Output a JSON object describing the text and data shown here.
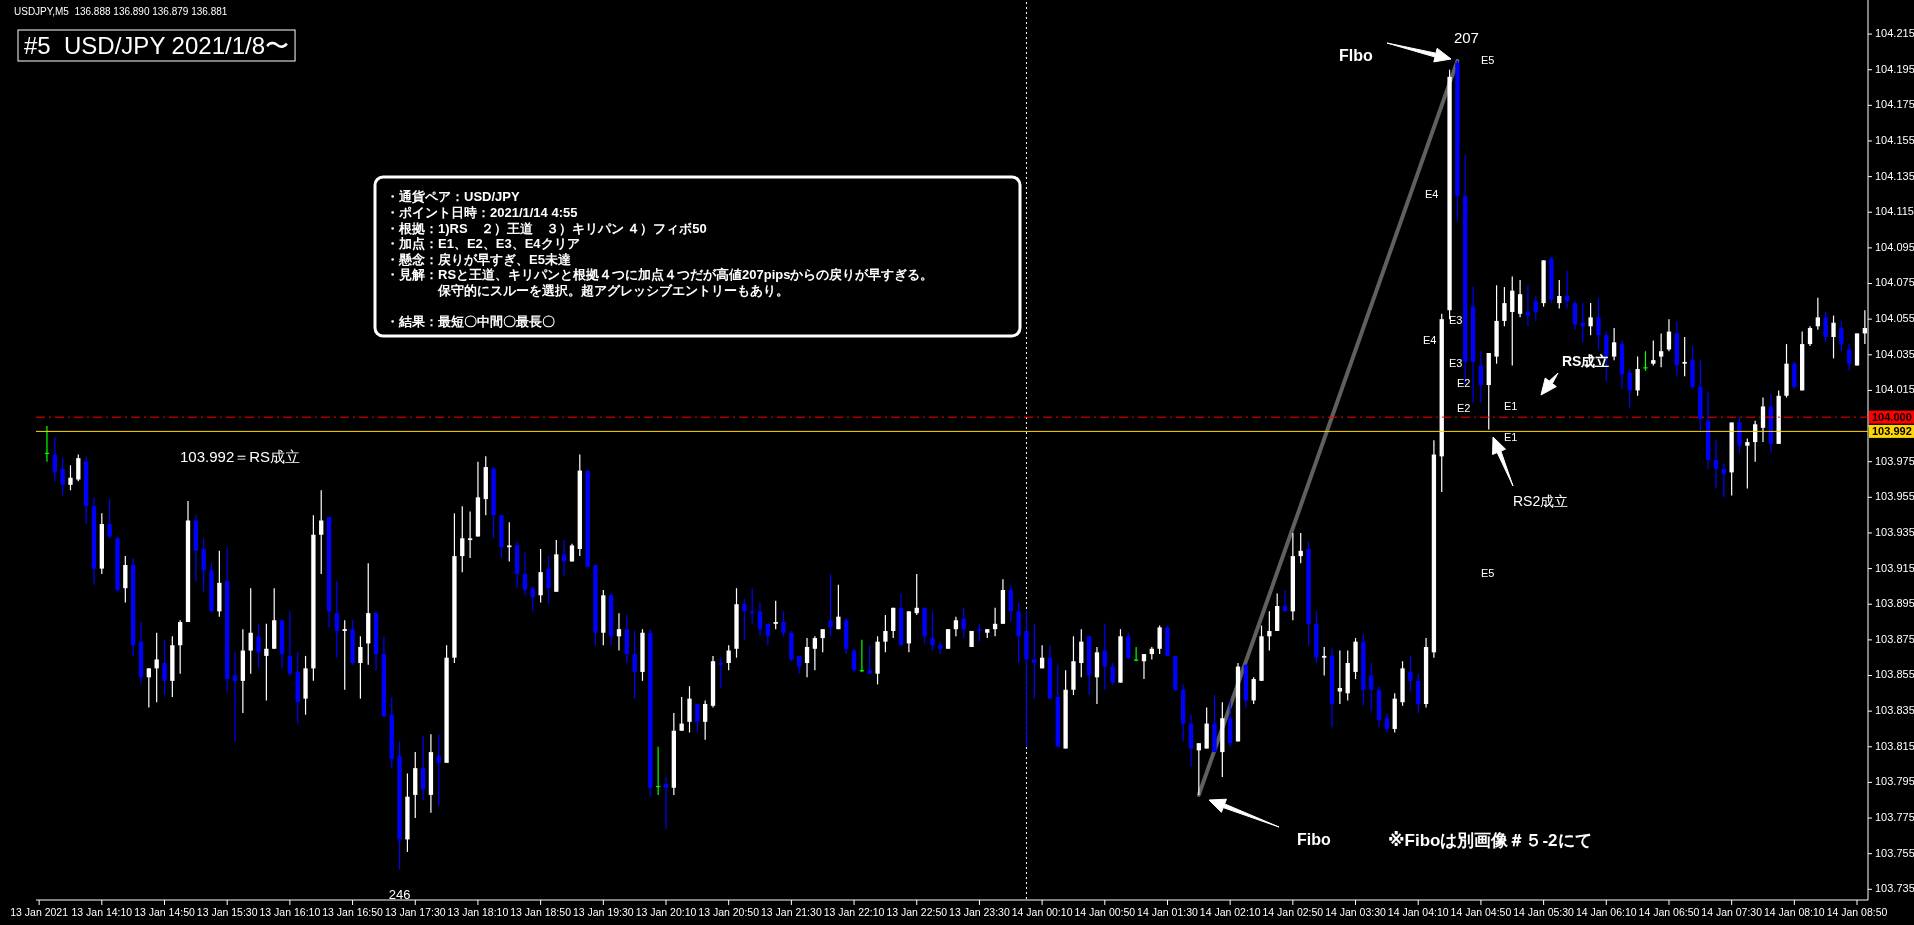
{
  "chart_data": {
    "type": "candlestick",
    "title": "#5  USD/JPY 2021/1/8〜",
    "xlim": [
      "2021-01-13T13:28",
      "2021-01-14T08:57"
    ],
    "ylim": [
      103.729,
      104.233
    ],
    "yticks": [
      103.735,
      103.755,
      103.775,
      103.795,
      103.815,
      103.835,
      103.855,
      103.875,
      103.895,
      103.915,
      103.935,
      103.955,
      103.975,
      {
        "value": 103.995,
        "label": null
      },
      104.015,
      104.035,
      104.055,
      104.075,
      104.095,
      104.115,
      104.135,
      104.155,
      104.175,
      104.195,
      104.215
    ],
    "xticks": [
      {
        "value": "2021-01-13T13:30",
        "label": "13 Jan 2021"
      },
      {
        "value": "2021-01-13T14:10",
        "label": "13 Jan 14:10"
      },
      {
        "value": "2021-01-13T14:50",
        "label": "13 Jan 14:50"
      },
      {
        "value": "2021-01-13T15:30",
        "label": "13 Jan 15:30"
      },
      {
        "value": "2021-01-13T16:10",
        "label": "13 Jan 16:10"
      },
      {
        "value": "2021-01-13T16:50",
        "label": "13 Jan 16:50"
      },
      {
        "value": "2021-01-13T17:30",
        "label": "13 Jan 17:30"
      },
      {
        "value": "2021-01-13T18:10",
        "label": "13 Jan 18:10"
      },
      {
        "value": "2021-01-13T18:50",
        "label": "13 Jan 18:50"
      },
      {
        "value": "2021-01-13T19:30",
        "label": "13 Jan 19:30"
      },
      {
        "value": "2021-01-13T20:10",
        "label": "13 Jan 20:10"
      },
      {
        "value": "2021-01-13T20:50",
        "label": "13 Jan 20:50"
      },
      {
        "value": "2021-01-13T21:30",
        "label": "13 Jan 21:30"
      },
      {
        "value": "2021-01-13T22:10",
        "label": "13 Jan 22:10"
      },
      {
        "value": "2021-01-13T22:50",
        "label": "13 Jan 22:50"
      },
      {
        "value": "2021-01-13T23:30",
        "label": "13 Jan 23:30"
      },
      {
        "value": "2021-01-14T00:10",
        "label": "14 Jan 00:10"
      },
      {
        "value": "2021-01-14T00:50",
        "label": "14 Jan 00:50"
      },
      {
        "value": "2021-01-14T01:30",
        "label": "14 Jan 01:30"
      },
      {
        "value": "2021-01-14T02:10",
        "label": "14 Jan 02:10"
      },
      {
        "value": "2021-01-14T02:50",
        "label": "14 Jan 02:50"
      },
      {
        "value": "2021-01-14T03:30",
        "label": "14 Jan 03:30"
      },
      {
        "value": "2021-01-14T04:10",
        "label": "14 Jan 04:10"
      },
      {
        "value": "2021-01-14T04:50",
        "label": "14 Jan 04:50"
      },
      {
        "value": "2021-01-14T05:30",
        "label": "14 Jan 05:30"
      },
      {
        "value": "2021-01-14T06:10",
        "label": "14 Jan 06:10"
      },
      {
        "value": "2021-01-14T06:50",
        "label": "14 Jan 06:50"
      },
      {
        "value": "2021-01-14T07:30",
        "label": "14 Jan 07:30"
      },
      {
        "value": "2021-01-14T08:10",
        "label": "14 Jan 08:10"
      },
      {
        "value": "2021-01-14T08:50",
        "label": "14 Jan 08:50"
      }
    ],
    "x": [
      "2021-01-13T13:35",
      "2021-01-13T13:40",
      "2021-01-13T13:45",
      "2021-01-13T13:50",
      "2021-01-13T13:55",
      "2021-01-13T14:00",
      "2021-01-13T14:05",
      "2021-01-13T14:10",
      "2021-01-13T14:15",
      "2021-01-13T14:20",
      "2021-01-13T14:25",
      "2021-01-13T14:30",
      "2021-01-13T14:35",
      "2021-01-13T14:40",
      "2021-01-13T14:45",
      "2021-01-13T14:50",
      "2021-01-13T14:55",
      "2021-01-13T15:00",
      "2021-01-13T15:05",
      "2021-01-13T15:10",
      "2021-01-13T15:15",
      "2021-01-13T15:20",
      "2021-01-13T15:25",
      "2021-01-13T15:30",
      "2021-01-13T15:35",
      "2021-01-13T15:40",
      "2021-01-13T15:45",
      "2021-01-13T15:50",
      "2021-01-13T15:55",
      "2021-01-13T16:00",
      "2021-01-13T16:05",
      "2021-01-13T16:10",
      "2021-01-13T16:15",
      "2021-01-13T16:20",
      "2021-01-13T16:25",
      "2021-01-13T16:30",
      "2021-01-13T16:35",
      "2021-01-13T16:40",
      "2021-01-13T16:45",
      "2021-01-13T16:50",
      "2021-01-13T16:55",
      "2021-01-13T17:00",
      "2021-01-13T17:05",
      "2021-01-13T17:10",
      "2021-01-13T17:15",
      "2021-01-13T17:20",
      "2021-01-13T17:25",
      "2021-01-13T17:30",
      "2021-01-13T17:35",
      "2021-01-13T17:40",
      "2021-01-13T17:45",
      "2021-01-13T17:50",
      "2021-01-13T17:55",
      "2021-01-13T18:00",
      "2021-01-13T18:05",
      "2021-01-13T18:10",
      "2021-01-13T18:15",
      "2021-01-13T18:20",
      "2021-01-13T18:25",
      "2021-01-13T18:30",
      "2021-01-13T18:35",
      "2021-01-13T18:40",
      "2021-01-13T18:45",
      "2021-01-13T18:50",
      "2021-01-13T18:55",
      "2021-01-13T19:00",
      "2021-01-13T19:05",
      "2021-01-13T19:10",
      "2021-01-13T19:15",
      "2021-01-13T19:20",
      "2021-01-13T19:25",
      "2021-01-13T19:30",
      "2021-01-13T19:35",
      "2021-01-13T19:40",
      "2021-01-13T19:45",
      "2021-01-13T19:50",
      "2021-01-13T19:55",
      "2021-01-13T20:00",
      "2021-01-13T20:05",
      "2021-01-13T20:10",
      "2021-01-13T20:15",
      "2021-01-13T20:20",
      "2021-01-13T20:25",
      "2021-01-13T20:30",
      "2021-01-13T20:35",
      "2021-01-13T20:40",
      "2021-01-13T20:45",
      "2021-01-13T20:50",
      "2021-01-13T20:55",
      "2021-01-13T21:00",
      "2021-01-13T21:05",
      "2021-01-13T21:10",
      "2021-01-13T21:15",
      "2021-01-13T21:20",
      "2021-01-13T21:25",
      "2021-01-13T21:30",
      "2021-01-13T21:35",
      "2021-01-13T21:40",
      "2021-01-13T21:45",
      "2021-01-13T21:50",
      "2021-01-13T21:55",
      "2021-01-13T22:00",
      "2021-01-13T22:05",
      "2021-01-13T22:10",
      "2021-01-13T22:15",
      "2021-01-13T22:20",
      "2021-01-13T22:25",
      "2021-01-13T22:30",
      "2021-01-13T22:35",
      "2021-01-13T22:40",
      "2021-01-13T22:45",
      "2021-01-13T22:50",
      "2021-01-13T22:55",
      "2021-01-13T23:00",
      "2021-01-13T23:05",
      "2021-01-13T23:10",
      "2021-01-13T23:15",
      "2021-01-13T23:20",
      "2021-01-13T23:25",
      "2021-01-13T23:30",
      "2021-01-13T23:35",
      "2021-01-13T23:40",
      "2021-01-13T23:45",
      "2021-01-13T23:50",
      "2021-01-13T23:55",
      "2021-01-14T00:00",
      "2021-01-14T00:05",
      "2021-01-14T00:10",
      "2021-01-14T00:15",
      "2021-01-14T00:20",
      "2021-01-14T00:25",
      "2021-01-14T00:30",
      "2021-01-14T00:35",
      "2021-01-14T00:40",
      "2021-01-14T00:45",
      "2021-01-14T00:50",
      "2021-01-14T00:55",
      "2021-01-14T01:00",
      "2021-01-14T01:05",
      "2021-01-14T01:10",
      "2021-01-14T01:15",
      "2021-01-14T01:20",
      "2021-01-14T01:25",
      "2021-01-14T01:30",
      "2021-01-14T01:35",
      "2021-01-14T01:40",
      "2021-01-14T01:45",
      "2021-01-14T01:50",
      "2021-01-14T01:55",
      "2021-01-14T02:00",
      "2021-01-14T02:05",
      "2021-01-14T02:10",
      "2021-01-14T02:15",
      "2021-01-14T02:20",
      "2021-01-14T02:25",
      "2021-01-14T02:30",
      "2021-01-14T02:35",
      "2021-01-14T02:40",
      "2021-01-14T02:45",
      "2021-01-14T02:50",
      "2021-01-14T02:55",
      "2021-01-14T03:00",
      "2021-01-14T03:05",
      "2021-01-14T03:10",
      "2021-01-14T03:15",
      "2021-01-14T03:20",
      "2021-01-14T03:25",
      "2021-01-14T03:30",
      "2021-01-14T03:35",
      "2021-01-14T03:40",
      "2021-01-14T03:45",
      "2021-01-14T03:50",
      "2021-01-14T03:55",
      "2021-01-14T04:00",
      "2021-01-14T04:05",
      "2021-01-14T04:10",
      "2021-01-14T04:15",
      "2021-01-14T04:20",
      "2021-01-14T04:25",
      "2021-01-14T04:30",
      "2021-01-14T04:35",
      "2021-01-14T04:40",
      "2021-01-14T04:45",
      "2021-01-14T04:50",
      "2021-01-14T04:55",
      "2021-01-14T05:00",
      "2021-01-14T05:05",
      "2021-01-14T05:10",
      "2021-01-14T05:15",
      "2021-01-14T05:20",
      "2021-01-14T05:25",
      "2021-01-14T05:30",
      "2021-01-14T05:35",
      "2021-01-14T05:40",
      "2021-01-14T05:45",
      "2021-01-14T05:50",
      "2021-01-14T05:55",
      "2021-01-14T06:00",
      "2021-01-14T06:05",
      "2021-01-14T06:10",
      "2021-01-14T06:15",
      "2021-01-14T06:20",
      "2021-01-14T06:25",
      "2021-01-14T06:30",
      "2021-01-14T06:35",
      "2021-01-14T06:40",
      "2021-01-14T06:45",
      "2021-01-14T06:50",
      "2021-01-14T06:55",
      "2021-01-14T07:00",
      "2021-01-14T07:05",
      "2021-01-14T07:10",
      "2021-01-14T07:15",
      "2021-01-14T07:20",
      "2021-01-14T07:25",
      "2021-01-14T07:30",
      "2021-01-14T07:35",
      "2021-01-14T07:40",
      "2021-01-14T07:45",
      "2021-01-14T07:50",
      "2021-01-14T07:55",
      "2021-01-14T08:00",
      "2021-01-14T08:05",
      "2021-01-14T08:10",
      "2021-01-14T08:15",
      "2021-01-14T08:20",
      "2021-01-14T08:25",
      "2021-01-14T08:30",
      "2021-01-14T08:35",
      "2021-01-14T08:40",
      "2021-01-14T08:45",
      "2021-01-14T08:50",
      "2021-01-14T08:55"
    ],
    "ohlc": [
      [
        103.98,
        103.995,
        103.975,
        103.98
      ],
      [
        103.979,
        103.989,
        103.964,
        103.969
      ],
      [
        103.971,
        103.977,
        103.956,
        103.962
      ],
      [
        103.962,
        103.973,
        103.959,
        103.966
      ],
      [
        103.965,
        103.979,
        103.964,
        103.977
      ],
      [
        103.975,
        103.978,
        103.94,
        103.95
      ],
      [
        103.95,
        103.955,
        103.906,
        103.915
      ],
      [
        103.915,
        103.946,
        103.912,
        103.94
      ],
      [
        103.94,
        103.954,
        103.932,
        103.933
      ],
      [
        103.932,
        103.933,
        103.902,
        103.903
      ],
      [
        103.904,
        103.922,
        103.896,
        103.917
      ],
      [
        103.917,
        103.921,
        103.866,
        103.872
      ],
      [
        103.874,
        103.885,
        103.85,
        103.854
      ],
      [
        103.854,
        103.859,
        103.837,
        103.859
      ],
      [
        103.859,
        103.879,
        103.84,
        103.864
      ],
      [
        103.862,
        103.875,
        103.844,
        103.852
      ],
      [
        103.852,
        103.877,
        103.843,
        103.872
      ],
      [
        103.872,
        103.886,
        103.856,
        103.885
      ],
      [
        103.885,
        103.953,
        103.885,
        103.942
      ],
      [
        103.942,
        103.945,
        103.908,
        103.925
      ],
      [
        103.926,
        103.932,
        103.902,
        103.914
      ],
      [
        103.914,
        103.918,
        103.891,
        103.891
      ],
      [
        103.891,
        103.925,
        103.888,
        103.907
      ],
      [
        103.908,
        103.927,
        103.846,
        103.853
      ],
      [
        103.855,
        103.868,
        103.818,
        103.852
      ],
      [
        103.852,
        103.881,
        103.834,
        103.869
      ],
      [
        103.869,
        103.904,
        103.856,
        103.879
      ],
      [
        103.877,
        103.884,
        103.859,
        103.868
      ],
      [
        103.866,
        103.884,
        103.841,
        103.87
      ],
      [
        103.87,
        103.904,
        103.87,
        103.886
      ],
      [
        103.886,
        103.886,
        103.859,
        103.867
      ],
      [
        103.866,
        103.891,
        103.855,
        103.856
      ],
      [
        103.857,
        103.868,
        103.828,
        103.84
      ],
      [
        103.842,
        103.866,
        103.833,
        103.859
      ],
      [
        103.859,
        103.945,
        103.852,
        103.934
      ],
      [
        103.934,
        103.959,
        103.912,
        103.942
      ],
      [
        103.944,
        103.944,
        103.882,
        103.891
      ],
      [
        103.89,
        103.908,
        103.865,
        103.88
      ],
      [
        103.88,
        103.886,
        103.847,
        103.881
      ],
      [
        103.881,
        103.886,
        103.861,
        103.862
      ],
      [
        103.862,
        103.877,
        103.842,
        103.871
      ],
      [
        103.873,
        103.918,
        103.861,
        103.89
      ],
      [
        103.89,
        103.891,
        103.858,
        103.867
      ],
      [
        103.867,
        103.877,
        103.832,
        103.832
      ],
      [
        103.833,
        103.843,
        103.803,
        103.808
      ],
      [
        103.81,
        103.818,
        103.746,
        103.763
      ],
      [
        103.763,
        103.8,
        103.756,
        103.787
      ],
      [
        103.788,
        103.812,
        103.775,
        103.803
      ],
      [
        103.803,
        103.821,
        103.785,
        103.791
      ],
      [
        103.788,
        103.822,
        103.778,
        103.812
      ],
      [
        103.81,
        103.822,
        103.782,
        103.806
      ],
      [
        103.806,
        103.872,
        103.806,
        103.865
      ],
      [
        103.865,
        103.946,
        103.862,
        103.922
      ],
      [
        103.922,
        103.95,
        103.913,
        103.932
      ],
      [
        103.931,
        103.947,
        103.921,
        103.932
      ],
      [
        103.933,
        103.975,
        103.933,
        103.955
      ],
      [
        103.954,
        103.978,
        103.945,
        103.972
      ],
      [
        103.971,
        103.972,
        103.932,
        103.945
      ],
      [
        103.945,
        103.945,
        103.921,
        103.927
      ],
      [
        103.927,
        103.941,
        103.919,
        103.928
      ],
      [
        103.928,
        103.93,
        103.904,
        103.912
      ],
      [
        103.912,
        103.924,
        103.9,
        103.903
      ],
      [
        103.904,
        103.905,
        103.891,
        103.899
      ],
      [
        103.9,
        103.926,
        103.896,
        103.913
      ],
      [
        103.915,
        103.922,
        103.895,
        103.904
      ],
      [
        103.902,
        103.931,
        103.902,
        103.923
      ],
      [
        103.923,
        103.931,
        103.911,
        103.919
      ],
      [
        103.919,
        103.929,
        103.919,
        103.928
      ],
      [
        103.926,
        103.979,
        103.922,
        103.97
      ],
      [
        103.97,
        103.97,
        103.916,
        103.916
      ],
      [
        103.917,
        103.917,
        103.872,
        103.879
      ],
      [
        103.879,
        103.903,
        103.872,
        103.9
      ],
      [
        103.9,
        103.901,
        103.872,
        103.877
      ],
      [
        103.877,
        103.89,
        103.869,
        103.881
      ],
      [
        103.881,
        103.889,
        103.862,
        103.867
      ],
      [
        103.867,
        103.88,
        103.842,
        103.857
      ],
      [
        103.857,
        103.881,
        103.852,
        103.879
      ],
      [
        103.879,
        103.881,
        103.787,
        103.792
      ],
      [
        103.793,
        103.815,
        103.788,
        103.793
      ],
      [
        103.794,
        103.798,
        103.769,
        103.792
      ],
      [
        103.792,
        103.834,
        103.788,
        103.824
      ],
      [
        103.824,
        103.843,
        103.824,
        103.828
      ],
      [
        103.829,
        103.849,
        103.823,
        103.842
      ],
      [
        103.839,
        103.839,
        103.823,
        103.829
      ],
      [
        103.829,
        103.841,
        103.819,
        103.839
      ],
      [
        103.838,
        103.866,
        103.837,
        103.863
      ],
      [
        103.862,
        103.865,
        103.848,
        103.861
      ],
      [
        103.862,
        103.872,
        103.858,
        103.869
      ],
      [
        103.87,
        103.904,
        103.865,
        103.895
      ],
      [
        103.895,
        103.898,
        103.875,
        103.891
      ],
      [
        103.891,
        103.904,
        103.884,
        103.89
      ],
      [
        103.891,
        103.896,
        103.877,
        103.881
      ],
      [
        103.884,
        103.884,
        103.872,
        103.877
      ],
      [
        103.884,
        103.897,
        103.881,
        103.885
      ],
      [
        103.885,
        103.891,
        103.877,
        103.879
      ],
      [
        103.879,
        103.88,
        103.863,
        103.864
      ],
      [
        103.866,
        103.866,
        103.856,
        103.86
      ],
      [
        103.862,
        103.876,
        103.854,
        103.871
      ],
      [
        103.87,
        103.877,
        103.858,
        103.876
      ],
      [
        103.876,
        103.881,
        103.868,
        103.881
      ],
      [
        103.886,
        103.912,
        103.877,
        103.882
      ],
      [
        103.881,
        103.906,
        103.881,
        103.888
      ],
      [
        103.886,
        103.887,
        103.867,
        103.87
      ],
      [
        103.869,
        103.87,
        103.857,
        103.858
      ],
      [
        103.858,
        103.875,
        103.857,
        103.858
      ],
      [
        103.858,
        103.872,
        103.856,
        103.856
      ],
      [
        103.856,
        103.877,
        103.85,
        103.874
      ],
      [
        103.874,
        103.889,
        103.868,
        103.88
      ],
      [
        103.88,
        103.893,
        103.876,
        103.893
      ],
      [
        103.893,
        103.901,
        103.872,
        103.872
      ],
      [
        103.873,
        103.891,
        103.868,
        103.891
      ],
      [
        103.89,
        103.912,
        103.889,
        103.893
      ],
      [
        103.893,
        103.893,
        103.873,
        103.877
      ],
      [
        103.876,
        103.891,
        103.869,
        103.872
      ],
      [
        103.872,
        103.874,
        103.867,
        103.87
      ],
      [
        103.87,
        103.881,
        103.87,
        103.881
      ],
      [
        103.881,
        103.888,
        103.877,
        103.886
      ],
      [
        103.887,
        103.893,
        103.876,
        103.881
      ],
      [
        103.871,
        103.88,
        103.871,
        103.88
      ],
      [
        103.881,
        103.884,
        103.874,
        103.88
      ],
      [
        103.879,
        103.881,
        103.876,
        103.881
      ],
      [
        103.881,
        103.893,
        103.877,
        103.884
      ],
      [
        103.884,
        103.909,
        103.884,
        103.903
      ],
      [
        103.903,
        103.906,
        103.885,
        103.891
      ],
      [
        103.891,
        103.896,
        103.862,
        103.877
      ],
      [
        103.88,
        103.891,
        103.815,
        103.864
      ],
      [
        103.864,
        103.884,
        103.842,
        103.862
      ],
      [
        103.859,
        103.872,
        103.859,
        103.865
      ],
      [
        103.865,
        103.872,
        103.842,
        103.842
      ],
      [
        103.843,
        103.861,
        103.815,
        103.815
      ],
      [
        103.814,
        103.858,
        103.814,
        103.847
      ],
      [
        103.847,
        103.877,
        103.844,
        103.863
      ],
      [
        103.862,
        103.881,
        103.854,
        103.874
      ],
      [
        103.877,
        103.877,
        103.844,
        103.855
      ],
      [
        103.854,
        103.871,
        103.839,
        103.868
      ],
      [
        103.869,
        103.884,
        103.847,
        103.86
      ],
      [
        103.86,
        103.862,
        103.85,
        103.851
      ],
      [
        103.851,
        103.881,
        103.851,
        103.877
      ],
      [
        103.877,
        103.879,
        103.864,
        103.865
      ],
      [
        103.864,
        103.871,
        103.863,
        103.864
      ],
      [
        103.863,
        103.867,
        103.853,
        103.867
      ],
      [
        103.867,
        103.871,
        103.864,
        103.87
      ],
      [
        103.87,
        103.883,
        103.867,
        103.882
      ],
      [
        103.882,
        103.883,
        103.866,
        103.866
      ],
      [
        103.866,
        103.866,
        103.846,
        103.847
      ],
      [
        103.847,
        103.85,
        103.818,
        103.828
      ],
      [
        103.828,
        103.833,
        103.804,
        103.814
      ],
      [
        103.813,
        103.817,
        103.788,
        103.817
      ],
      [
        103.814,
        103.837,
        103.814,
        103.828
      ],
      [
        103.828,
        103.844,
        103.812,
        103.812
      ],
      [
        103.812,
        103.84,
        103.798,
        103.831
      ],
      [
        103.831,
        103.841,
        103.815,
        103.817
      ],
      [
        103.818,
        103.862,
        103.818,
        103.86
      ],
      [
        103.861,
        103.861,
        103.837,
        103.841
      ],
      [
        103.841,
        103.854,
        103.839,
        103.853
      ],
      [
        103.852,
        103.883,
        103.852,
        103.877
      ],
      [
        103.877,
        103.891,
        103.869,
        103.88
      ],
      [
        103.88,
        103.901,
        103.88,
        103.894
      ],
      [
        103.894,
        103.903,
        103.891,
        103.891
      ],
      [
        103.891,
        103.935,
        103.886,
        103.922
      ],
      [
        103.922,
        103.935,
        103.918,
        103.925
      ],
      [
        103.926,
        103.93,
        103.872,
        103.884
      ],
      [
        103.884,
        103.891,
        103.862,
        103.865
      ],
      [
        103.865,
        103.871,
        103.855,
        103.866
      ],
      [
        103.866,
        103.87,
        103.826,
        103.839
      ],
      [
        103.846,
        103.869,
        103.839,
        103.848
      ],
      [
        103.845,
        103.869,
        103.841,
        103.862
      ],
      [
        103.857,
        103.876,
        103.853,
        103.874
      ],
      [
        103.874,
        103.878,
        103.838,
        103.847
      ],
      [
        103.855,
        103.862,
        103.835,
        103.847
      ],
      [
        103.847,
        103.849,
        103.826,
        103.83
      ],
      [
        103.831,
        103.834,
        103.823,
        103.825
      ],
      [
        103.825,
        103.845,
        103.823,
        103.842
      ],
      [
        103.84,
        103.863,
        103.838,
        103.859
      ],
      [
        103.857,
        103.866,
        103.846,
        103.852
      ],
      [
        103.852,
        103.856,
        103.834,
        103.839
      ],
      [
        103.839,
        103.876,
        103.837,
        103.871
      ],
      [
        103.868,
        103.987,
        103.865,
        103.979
      ],
      [
        103.978,
        104.058,
        103.958,
        104.055
      ],
      [
        104.06,
        104.195,
        104.055,
        104.191
      ],
      [
        104.199,
        104.2,
        104.11,
        104.124
      ],
      [
        104.124,
        104.147,
        104.018,
        104.031
      ],
      [
        104.062,
        104.073,
        104.008,
        104.031
      ],
      [
        104.029,
        104.037,
        104.008,
        104.018
      ],
      [
        104.018,
        104.036,
        103.993,
        104.036
      ],
      [
        104.034,
        104.074,
        104.03,
        104.054
      ],
      [
        104.054,
        104.073,
        104.051,
        104.064
      ],
      [
        104.059,
        104.079,
        104.029,
        104.071
      ],
      [
        104.058,
        104.077,
        104.056,
        104.069
      ],
      [
        104.059,
        104.074,
        104.051,
        104.057
      ],
      [
        104.065,
        104.068,
        104.054,
        104.059
      ],
      [
        104.064,
        104.088,
        104.062,
        104.088
      ],
      [
        104.089,
        104.09,
        104.064,
        104.066
      ],
      [
        104.064,
        104.077,
        104.061,
        104.068
      ],
      [
        104.068,
        104.082,
        104.061,
        104.065
      ],
      [
        104.064,
        104.065,
        104.049,
        104.052
      ],
      [
        104.053,
        104.064,
        104.042,
        104.051
      ],
      [
        104.051,
        104.064,
        104.046,
        104.056
      ],
      [
        104.056,
        104.067,
        104.038,
        104.046
      ],
      [
        104.046,
        104.048,
        104.02,
        104.034
      ],
      [
        104.034,
        104.05,
        104.032,
        104.042
      ],
      [
        104.041,
        104.043,
        104.016,
        104.024
      ],
      [
        104.025,
        104.027,
        104.005,
        104.015
      ],
      [
        104.015,
        104.034,
        104.012,
        104.027
      ],
      [
        104.028,
        104.037,
        104.026,
        104.028
      ],
      [
        104.03,
        104.043,
        104.029,
        104.032
      ],
      [
        104.034,
        104.047,
        104.028,
        104.037
      ],
      [
        104.038,
        104.055,
        104.037,
        104.048
      ],
      [
        104.047,
        104.054,
        104.023,
        104.029
      ],
      [
        104.03,
        104.045,
        104.023,
        104.031
      ],
      [
        104.032,
        104.04,
        104.016,
        104.017
      ],
      [
        104.017,
        104.032,
        103.992,
        103.999
      ],
      [
        103.998,
        104.014,
        103.971,
        103.976
      ],
      [
        103.976,
        103.987,
        103.96,
        103.971
      ],
      [
        103.971,
        103.974,
        103.955,
        103.968
      ],
      [
        103.969,
        103.997,
        103.956,
        103.997
      ],
      [
        103.997,
        104.0,
        103.98,
        103.984
      ],
      [
        103.984,
        103.988,
        103.96,
        103.986
      ],
      [
        103.986,
        103.998,
        103.975,
        103.996
      ],
      [
        103.994,
        104.011,
        103.986,
        104.006
      ],
      [
        104.006,
        104.013,
        103.98,
        103.985
      ],
      [
        103.985,
        104.015,
        103.985,
        104.012
      ],
      [
        104.012,
        104.041,
        104.011,
        104.03
      ],
      [
        104.03,
        104.031,
        104.016,
        104.017
      ],
      [
        104.015,
        104.048,
        104.015,
        104.041
      ],
      [
        104.041,
        104.051,
        104.04,
        104.05
      ],
      [
        104.051,
        104.067,
        104.049,
        104.056
      ],
      [
        104.056,
        104.059,
        104.042,
        104.045
      ],
      [
        104.045,
        104.057,
        104.033,
        104.053
      ],
      [
        104.05,
        104.054,
        104.037,
        104.041
      ],
      [
        104.038,
        104.041,
        104.026,
        104.03
      ],
      [
        104.029,
        104.047,
        104.029,
        104.047
      ],
      [
        104.047,
        104.06,
        104.041,
        104.05
      ]
    ],
    "colors": [
      "#00ff00",
      "#0000ff",
      "#0000ff",
      "#ffffff",
      "#ffffff",
      "#0000ff",
      "#0000ff",
      "#ffffff",
      "#0000ff",
      "#0000ff",
      "#ffffff",
      "#0000ff",
      "#0000ff",
      "#ffffff",
      "#ffffff",
      "#0000ff",
      "#ffffff",
      "#ffffff",
      "#ffffff",
      "#0000ff",
      "#0000ff",
      "#0000ff",
      "#ffffff",
      "#0000ff",
      "#0000ff",
      "#ffffff",
      "#ffffff",
      "#0000ff",
      "#ffffff",
      "#ffffff",
      "#0000ff",
      "#0000ff",
      "#0000ff",
      "#ffffff",
      "#ffffff",
      "#ffffff",
      "#0000ff",
      "#0000ff",
      "#ffffff",
      "#0000ff",
      "#ffffff",
      "#ffffff",
      "#0000ff",
      "#0000ff",
      "#0000ff",
      "#0000ff",
      "#ffffff",
      "#ffffff",
      "#0000ff",
      "#ffffff",
      "#0000ff",
      "#ffffff",
      "#ffffff",
      "#ffffff",
      "#ffffff",
      "#ffffff",
      "#ffffff",
      "#0000ff",
      "#0000ff",
      "#ffffff",
      "#0000ff",
      "#0000ff",
      "#0000ff",
      "#ffffff",
      "#0000ff",
      "#ffffff",
      "#0000ff",
      "#ffffff",
      "#ffffff",
      "#0000ff",
      "#0000ff",
      "#ffffff",
      "#0000ff",
      "#ffffff",
      "#0000ff",
      "#0000ff",
      "#ffffff",
      "#0000ff",
      "#00ff00",
      "#0000ff",
      "#ffffff",
      "#ffffff",
      "#ffffff",
      "#0000ff",
      "#ffffff",
      "#ffffff",
      "#0000ff",
      "#ffffff",
      "#ffffff",
      "#0000ff",
      "#0000ff",
      "#0000ff",
      "#0000ff",
      "#ffffff",
      "#0000ff",
      "#0000ff",
      "#0000ff",
      "#ffffff",
      "#ffffff",
      "#ffffff",
      "#0000ff",
      "#ffffff",
      "#0000ff",
      "#0000ff",
      "#00ff00",
      "#0000ff",
      "#ffffff",
      "#ffffff",
      "#ffffff",
      "#0000ff",
      "#ffffff",
      "#ffffff",
      "#0000ff",
      "#0000ff",
      "#0000ff",
      "#ffffff",
      "#ffffff",
      "#0000ff",
      "#ffffff",
      "#0000ff",
      "#ffffff",
      "#ffffff",
      "#ffffff",
      "#0000ff",
      "#0000ff",
      "#0000ff",
      "#0000ff",
      "#ffffff",
      "#0000ff",
      "#0000ff",
      "#ffffff",
      "#ffffff",
      "#ffffff",
      "#0000ff",
      "#ffffff",
      "#0000ff",
      "#0000ff",
      "#ffffff",
      "#0000ff",
      "#00ff00",
      "#ffffff",
      "#ffffff",
      "#ffffff",
      "#0000ff",
      "#0000ff",
      "#0000ff",
      "#0000ff",
      "#ffffff",
      "#ffffff",
      "#0000ff",
      "#ffffff",
      "#0000ff",
      "#ffffff",
      "#0000ff",
      "#ffffff",
      "#ffffff",
      "#ffffff",
      "#ffffff",
      "#0000ff",
      "#ffffff",
      "#ffffff",
      "#0000ff",
      "#0000ff",
      "#ffffff",
      "#0000ff",
      "#ffffff",
      "#ffffff",
      "#ffffff",
      "#0000ff",
      "#0000ff",
      "#0000ff",
      "#0000ff",
      "#ffffff",
      "#ffffff",
      "#0000ff",
      "#0000ff",
      "#ffffff",
      "#ffffff",
      "#ffffff",
      "#ffffff",
      "#0000ff",
      "#0000ff",
      "#0000ff",
      "#0000ff",
      "#ffffff",
      "#ffffff",
      "#ffffff",
      "#ffffff",
      "#ffffff",
      "#0000ff",
      "#0000ff",
      "#ffffff",
      "#0000ff",
      "#ffffff",
      "#0000ff",
      "#0000ff",
      "#0000ff",
      "#ffffff",
      "#0000ff",
      "#0000ff",
      "#ffffff",
      "#0000ff",
      "#0000ff",
      "#ffffff",
      "#00ff00",
      "#ffffff",
      "#ffffff",
      "#ffffff",
      "#0000ff",
      "#ffffff",
      "#0000ff",
      "#0000ff",
      "#0000ff",
      "#0000ff",
      "#0000ff",
      "#ffffff",
      "#0000ff",
      "#ffffff",
      "#ffffff",
      "#ffffff",
      "#0000ff",
      "#ffffff",
      "#ffffff",
      "#0000ff",
      "#ffffff",
      "#ffffff",
      "#ffffff",
      "#0000ff",
      "#ffffff",
      "#0000ff",
      "#0000ff",
      "#ffffff",
      "#ffffff"
    ],
    "series": [
      {
        "type": "line",
        "x": [
          "2021-01-14T01:50",
          "2021-01-14T04:35"
        ],
        "values": [
          103.788,
          104.2
        ],
        "color": "#808080"
      }
    ],
    "ref_lines": [
      {
        "axis": "y",
        "value": 104.0,
        "label": "104.000",
        "color": "#ff0000",
        "line_style": "dashed"
      },
      {
        "axis": "y",
        "value": 103.992,
        "label": "103.992",
        "color": "#ffd700",
        "line_style": "solid"
      },
      {
        "axis": "x",
        "value": "2021-01-14T00:00",
        "color": "#ffffff",
        "line_style": "dotted"
      }
    ],
    "annotations": [
      "・通貨ペア：USD/JPY",
      "・ポイント日時：2021/1/14 4:55",
      "・根拠：1)RS　２）王道　３）キリパン ４）フィボ50",
      "・加点：E1、E2、E3、E4クリア",
      "・懸念：戻りが早すぎ、E5未達",
      "・見解：RSと王道、キリパンと根拠４つに加点４つだが高値207pipsからの戻りが早すぎる。保守的にスルーを選択。超アグレッシブエントリーもあり。",
      "・結果：最短〇中間〇最長〇",
      "※Fiboは別画像＃５-2にて",
      "USDJPY,M5  136.888 136.890 136.879 136.881",
      "103.992＝RS成立",
      "Flbo",
      {
        "text": "207",
        "x": "2021-01-14T04:35",
        "y": 104.2
      },
      "Fibo",
      {
        "text": "246",
        "x": "2021-01-13T17:20",
        "y": 103.746
      },
      "RS成立",
      "RS2成立",
      "E5",
      "E4",
      "E3",
      "E4",
      "E3",
      "E2",
      "E2",
      "E1",
      "E1",
      "E5"
    ]
  }
}
